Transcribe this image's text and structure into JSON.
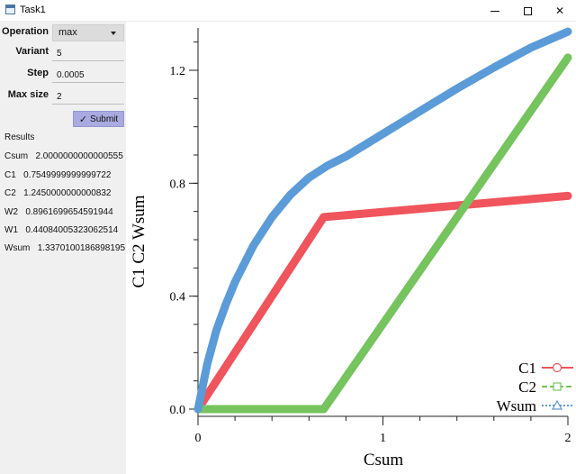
{
  "window": {
    "title": "Task1"
  },
  "form": {
    "operation": {
      "label": "Operation",
      "value": "max"
    },
    "variant": {
      "label": "Variant",
      "value": "5"
    },
    "step": {
      "label": "Step",
      "value": "0.0005"
    },
    "max_size": {
      "label": "Max size",
      "value": "2"
    },
    "submit_label": "Submit"
  },
  "results": {
    "title": "Results",
    "items": [
      {
        "name": "Csum",
        "value": "2.0000000000000555"
      },
      {
        "name": "C1",
        "value": "0.7549999999999722"
      },
      {
        "name": "C2",
        "value": "1.2450000000000832"
      },
      {
        "name": "W2",
        "value": "0.8961699654591944"
      },
      {
        "name": "W1",
        "value": "0.44084005323062514"
      },
      {
        "name": "Wsum",
        "value": "1.3370100186898195"
      }
    ]
  },
  "chart_data": {
    "type": "line",
    "xlabel": "Csum",
    "ylabel": "C1 C2 Wsum",
    "xlim": [
      0,
      2
    ],
    "ylim": [
      0,
      1.35
    ],
    "x_ticks": [
      {
        "value": 0,
        "label": "0"
      },
      {
        "value": 1,
        "label": "1"
      },
      {
        "value": 2,
        "label": "2"
      }
    ],
    "y_ticks": [
      {
        "value": 0,
        "label": "0.0"
      },
      {
        "value": 0.4,
        "label": "0.4"
      },
      {
        "value": 0.8,
        "label": "0.8"
      },
      {
        "value": 1.2,
        "label": "1.2"
      }
    ],
    "legend_position": "bottom-right",
    "series": [
      {
        "name": "C1",
        "color": "#f0545c",
        "marker": "circle",
        "dash": "solid",
        "x": [
          0,
          0.68,
          2
        ],
        "y": [
          0,
          0.68,
          0.755
        ]
      },
      {
        "name": "C2",
        "color": "#75c45e",
        "marker": "square",
        "dash": "dashed",
        "x": [
          0,
          0.68,
          2
        ],
        "y": [
          0,
          0,
          1.245
        ]
      },
      {
        "name": "Wsum",
        "color": "#5b9bd8",
        "marker": "triangle",
        "dash": "dotted",
        "x": [
          0,
          0.05,
          0.1,
          0.15,
          0.2,
          0.3,
          0.4,
          0.5,
          0.6,
          0.7,
          0.8,
          1.0,
          1.2,
          1.4,
          1.6,
          1.8,
          2.0
        ],
        "y": [
          0,
          0.16,
          0.28,
          0.37,
          0.45,
          0.58,
          0.68,
          0.76,
          0.82,
          0.862,
          0.895,
          0.975,
          1.055,
          1.135,
          1.21,
          1.28,
          1.337
        ]
      }
    ]
  }
}
